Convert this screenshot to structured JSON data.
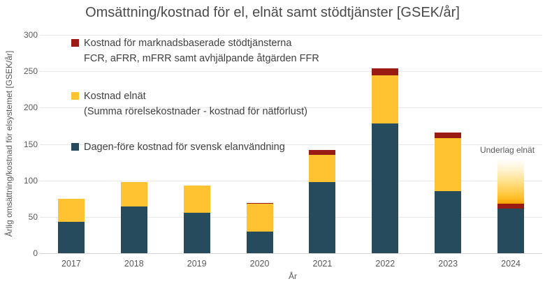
{
  "title": "Omsättning/kostnad för el, elnät samt stödtjänster [GSEK/år]",
  "chart_data": {
    "type": "bar",
    "stacked": true,
    "title": "Omsättning/kostnad för el, elnät samt stödtjänster [GSEK/år]",
    "categories": [
      "2017",
      "2018",
      "2019",
      "2020",
      "2021",
      "2022",
      "2023",
      "2024"
    ],
    "series": [
      {
        "key": "dagen_fore",
        "name": "Dagen-före kostnad för svensk elanvändning",
        "color": "#254b5c",
        "values": [
          43,
          64,
          56,
          30,
          98,
          178,
          85,
          61
        ]
      },
      {
        "key": "elnat",
        "name": "Kostnad elnät (Summa rörelsekostnader - kostnad för nätförlust)",
        "color": "#ffc331",
        "values": [
          32,
          34,
          37,
          38,
          37,
          66,
          73,
          61
        ]
      },
      {
        "key": "stodtjanster",
        "name": "Kostnad för marknadsbaserade stödtjänsterna FCR, aFRR, mFRR samt avhjälpande åtgärden FFR",
        "color": "#9a1b13",
        "values": [
          0,
          0,
          0,
          1,
          7,
          10,
          8,
          7
        ]
      }
    ],
    "estimated": {
      "year": "2024",
      "series_key": "elnat",
      "style": "fade-to-white-top",
      "label": "Underlag elnät",
      "note_stack_order": "2024: dagen_fore, stodtjanster, elnat(gradient)"
    },
    "xlabel": "År",
    "ylabel": "Årlig omsättning/kostnad för elsystemet [GSEK/år]",
    "ylim": [
      0,
      300
    ],
    "yticks": [
      0,
      50,
      100,
      150,
      200,
      250,
      300
    ],
    "grid": true,
    "legend_position": "upper-left-inside",
    "legend": [
      {
        "color": "#9a1b13",
        "line1": "Kostnad för marknadsbaserade stödtjänsterna",
        "line2": "FCR, aFRR, mFRR samt avhjälpande åtgärden FFR"
      },
      {
        "color": "#ffc331",
        "line1": "Kostnad elnät",
        "line2": "(Summa rörelsekostnader - kostnad för nätförlust)"
      },
      {
        "color": "#254b5c",
        "line1": "Dagen-före kostnad för svensk elanvändning",
        "line2": ""
      }
    ],
    "annotation": {
      "text": "Underlag elnät",
      "x": "2024",
      "y": 137
    }
  }
}
